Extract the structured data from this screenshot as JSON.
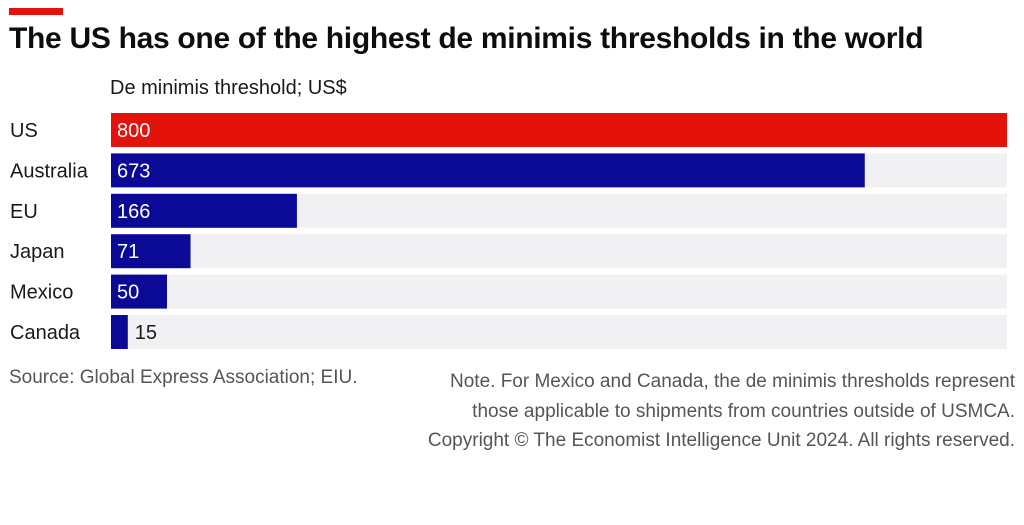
{
  "colors": {
    "accent": "#e3120b",
    "highlight": "#e3120b",
    "bar": "#0a0a96",
    "track": "#f1f1f3"
  },
  "header": {
    "title": "The US has one of the highest de minimis thresholds in the world",
    "subtitle": "De minimis threshold; US$"
  },
  "chart_data": {
    "type": "bar",
    "orientation": "horizontal",
    "categories": [
      "US",
      "Australia",
      "EU",
      "Japan",
      "Mexico",
      "Canada"
    ],
    "values": [
      800,
      673,
      166,
      71,
      50,
      15
    ],
    "highlight": "US",
    "title": "The US has one of the highest de minimis thresholds in the world",
    "xlabel": "",
    "ylabel": "De minimis threshold; US$",
    "xlim": [
      0,
      800
    ],
    "grid": false,
    "legend": "none"
  },
  "footer": {
    "source": "Source: Global Express Association; EIU.",
    "note": "Note. For Mexico and Canada, the de minimis thresholds represent those applicable to shipments from countries outside of USMCA.",
    "copyright": "Copyright © The Economist Intelligence Unit 2024. All rights reserved."
  }
}
